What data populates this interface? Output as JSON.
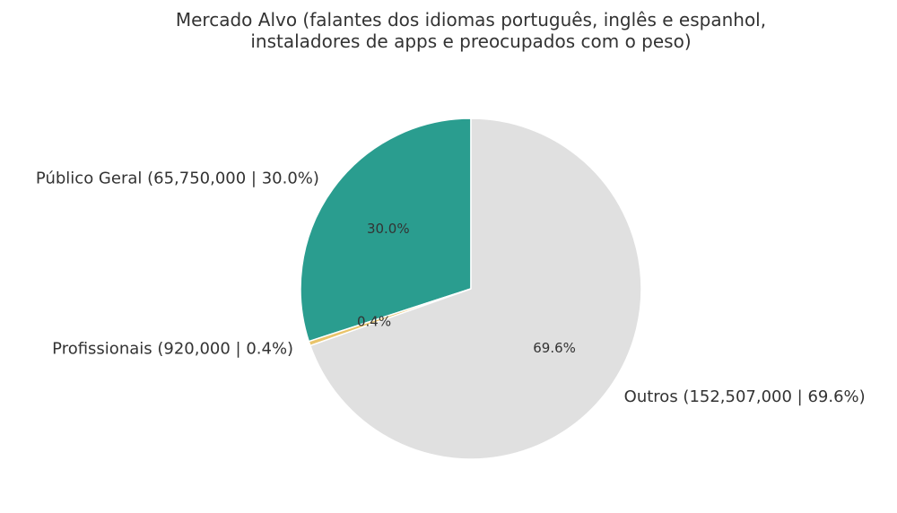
{
  "chart_data": {
    "type": "pie",
    "title_lines": [
      "Mercado Alvo (falantes dos idiomas português, inglês e espanhol,",
      "instaladores de apps e preocupados com o peso)"
    ],
    "slices": [
      {
        "name": "Público Geral",
        "value": 65750000,
        "label": "Público Geral (65,750,000 | 30.0%)",
        "pct_label": "30.0%",
        "color": "#2a9d8f"
      },
      {
        "name": "Profissionais",
        "value": 920000,
        "label": "Profissionais (920,000 | 0.4%)",
        "pct_label": "0.4%",
        "color": "#e9c46a"
      },
      {
        "name": "Outros",
        "value": 152507000,
        "label": "Outros (152,507,000 | 69.6%)",
        "pct_label": "69.6%",
        "color": "#e0e0e0"
      }
    ],
    "start_angle_deg": 90,
    "direction": "counterclockwise",
    "edge_color": "#ffffff"
  }
}
